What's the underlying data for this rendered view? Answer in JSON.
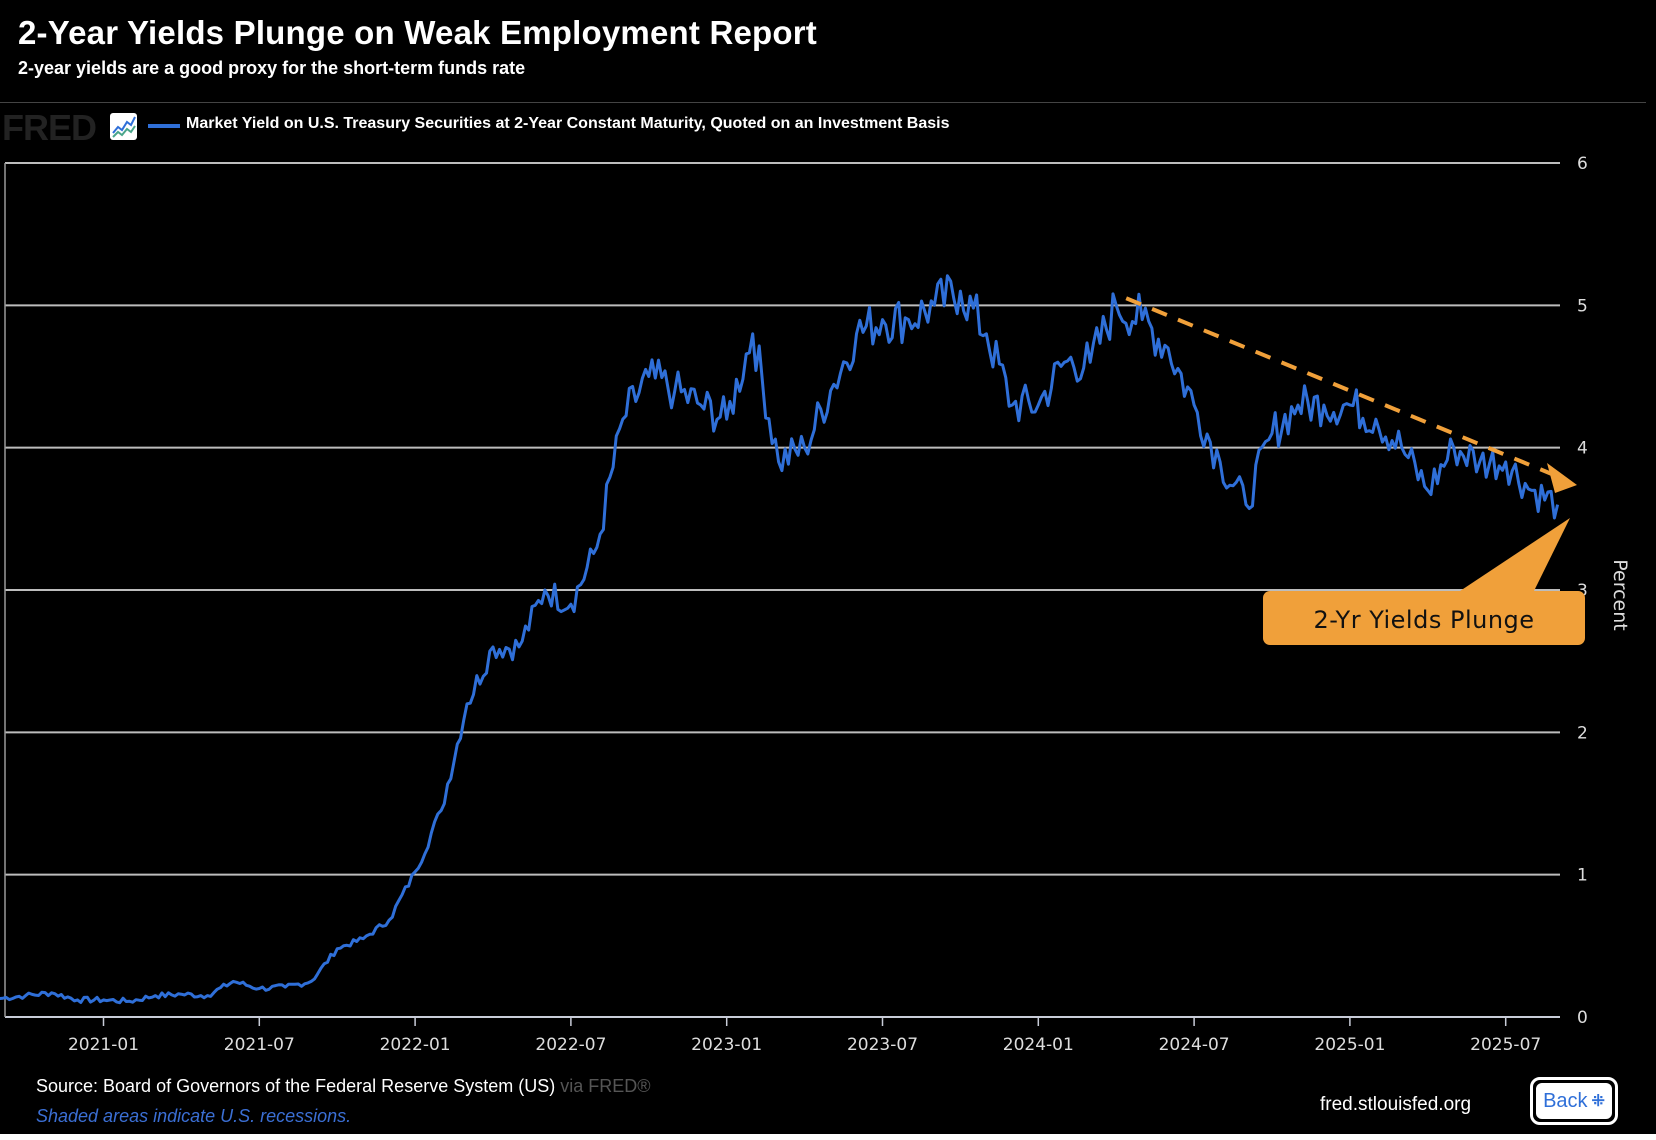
{
  "header": {
    "title": "2-Year Yields Plunge on Weak Employment Report",
    "subtitle": "2-year yields are a good proxy for the short-term funds rate"
  },
  "legend": {
    "logo_text": "FRED",
    "series_label": "Market Yield on U.S. Treasury Securities at 2-Year Constant Maturity, Quoted on an Investment Basis",
    "series_color": "#2f6fd8"
  },
  "annotation": {
    "label": "2-Yr Yields Plunge",
    "color": "#f0a03a"
  },
  "footer": {
    "source": "Source: Board of Governors of the Federal Reserve System (US)",
    "via": "via FRED®",
    "recession_note": "Shaded areas indicate U.S. recessions.",
    "site": "fred.stlouisfed.org",
    "back_label": "Back",
    "back_icon": "collapse-icon"
  },
  "chart_data": {
    "type": "line",
    "title": "2-Year Yields Plunge on Weak Employment Report",
    "xlabel": "",
    "ylabel": "Percent",
    "ylim": [
      0,
      6
    ],
    "yticks": [
      "0",
      "1",
      "2",
      "3",
      "4",
      "5",
      "6"
    ],
    "xticks": [
      "2021-01",
      "2021-07",
      "2022-01",
      "2022-07",
      "2023-01",
      "2023-07",
      "2024-01",
      "2024-07",
      "2025-01",
      "2025-07"
    ],
    "grid": true,
    "legend_position": "top-left",
    "series": [
      {
        "name": "Market Yield on U.S. Treasury Securities at 2-Year Constant Maturity, Quoted on an Investment Basis",
        "x": [
          "2020-09",
          "2020-10",
          "2020-11",
          "2020-12",
          "2021-01",
          "2021-02",
          "2021-03",
          "2021-04",
          "2021-05",
          "2021-06",
          "2021-07",
          "2021-08",
          "2021-09",
          "2021-10",
          "2021-11",
          "2021-12",
          "2022-01",
          "2022-02",
          "2022-03",
          "2022-04",
          "2022-05",
          "2022-06",
          "2022-07",
          "2022-08",
          "2022-09",
          "2022-10",
          "2022-11",
          "2022-12",
          "2023-01",
          "2023-02",
          "2023-03",
          "2023-04",
          "2023-05",
          "2023-06",
          "2023-07",
          "2023-08",
          "2023-09",
          "2023-10",
          "2023-11",
          "2023-12",
          "2024-01",
          "2024-02",
          "2024-03",
          "2024-04",
          "2024-05",
          "2024-06",
          "2024-07",
          "2024-08",
          "2024-09",
          "2024-10",
          "2024-11",
          "2024-12",
          "2025-01",
          "2025-02",
          "2025-03",
          "2025-04",
          "2025-05",
          "2025-06",
          "2025-07",
          "2025-08",
          "2025-09"
        ],
        "values": [
          0.13,
          0.15,
          0.17,
          0.12,
          0.12,
          0.11,
          0.15,
          0.16,
          0.15,
          0.25,
          0.2,
          0.21,
          0.25,
          0.48,
          0.55,
          0.68,
          1.02,
          1.45,
          2.2,
          2.6,
          2.6,
          3.0,
          2.9,
          3.3,
          4.2,
          4.5,
          4.4,
          4.3,
          4.2,
          4.8,
          3.9,
          4.0,
          4.4,
          4.8,
          4.9,
          4.9,
          5.0,
          5.1,
          4.8,
          4.3,
          4.3,
          4.6,
          4.6,
          5.0,
          4.9,
          4.7,
          4.3,
          3.9,
          3.6,
          4.1,
          4.3,
          4.3,
          4.3,
          4.2,
          4.0,
          3.7,
          4.0,
          3.9,
          3.9,
          3.7,
          3.6
        ]
      }
    ],
    "annotations": [
      {
        "type": "dashed-arrow",
        "from": [
          "2024-04",
          5.05
        ],
        "to": [
          "2025-09",
          3.75
        ]
      },
      {
        "type": "callout",
        "text": "2-Yr Yields Plunge",
        "points_to": [
          "2025-09",
          3.55
        ]
      }
    ]
  }
}
